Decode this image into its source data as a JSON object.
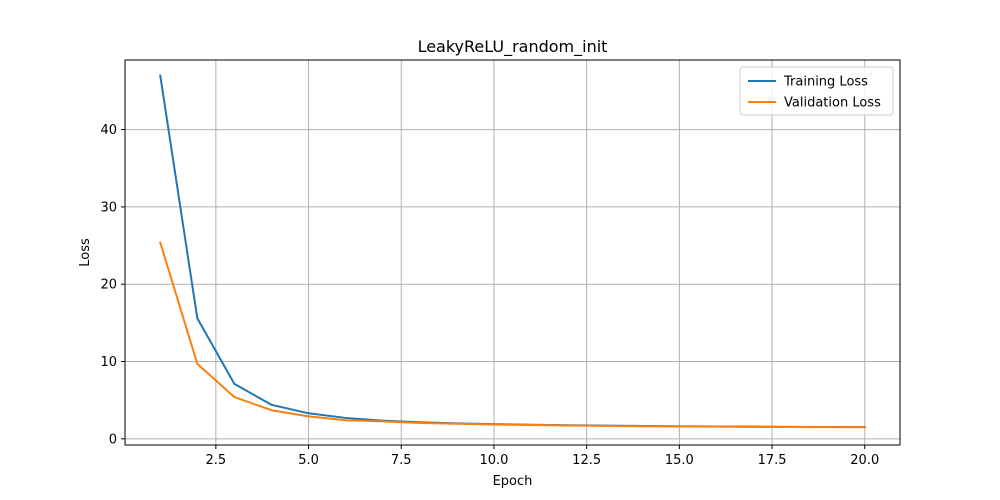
{
  "chart_data": {
    "type": "line",
    "title": "LeakyReLU_random_init",
    "xlabel": "Epoch",
    "ylabel": "Loss",
    "xlim": [
      0.05,
      20.95
    ],
    "ylim": [
      -0.8,
      49.0
    ],
    "xticks": [
      2.5,
      5.0,
      7.5,
      10.0,
      12.5,
      15.0,
      17.5,
      20.0
    ],
    "xtick_labels": [
      "2.5",
      "5.0",
      "7.5",
      "10.0",
      "12.5",
      "15.0",
      "17.5",
      "20.0"
    ],
    "yticks": [
      0,
      10,
      20,
      30,
      40
    ],
    "ytick_labels": [
      "0",
      "10",
      "20",
      "30",
      "40"
    ],
    "grid": true,
    "legend_position": "top-right",
    "x": [
      1,
      2,
      3,
      4,
      5,
      6,
      7,
      8,
      9,
      10,
      11,
      12,
      13,
      14,
      15,
      16,
      17,
      18,
      19,
      20
    ],
    "series": [
      {
        "name": "Training Loss",
        "color": "#1f77b4",
        "values": [
          47.0,
          15.6,
          7.1,
          4.4,
          3.3,
          2.7,
          2.35,
          2.15,
          2.0,
          1.9,
          1.82,
          1.75,
          1.7,
          1.66,
          1.63,
          1.6,
          1.57,
          1.55,
          1.53,
          1.52
        ]
      },
      {
        "name": "Validation Loss",
        "color": "#ff7f0e",
        "values": [
          25.4,
          9.7,
          5.4,
          3.7,
          2.9,
          2.4,
          2.25,
          2.05,
          1.95,
          1.85,
          1.78,
          1.72,
          1.67,
          1.62,
          1.6,
          1.57,
          1.55,
          1.53,
          1.51,
          1.5
        ]
      }
    ]
  }
}
